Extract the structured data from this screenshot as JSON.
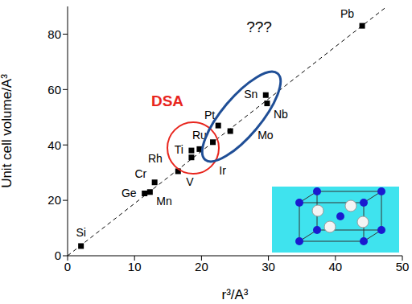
{
  "chart_data": {
    "type": "scatter",
    "x_label": "r³/A³",
    "y_label": "Unit cell volume/A³",
    "xlim": [
      0,
      50
    ],
    "xticks": [
      0,
      10,
      20,
      30,
      40,
      50
    ],
    "ylim": [
      0,
      90
    ],
    "yticks": [
      0,
      20,
      40,
      60,
      80
    ],
    "grid": false,
    "color": "#000000",
    "marker": "square",
    "point_labels": [
      "Si",
      "Ge",
      "Mn",
      "Cr",
      "V",
      "Rh",
      "Ti",
      "Ru",
      "Ir",
      "Pt",
      "Mo",
      "Sn",
      "Nb",
      "Pb"
    ],
    "x": [
      2,
      11.5,
      12.3,
      13,
      16.5,
      18.5,
      18.5,
      19.7,
      21.7,
      22.5,
      24.3,
      29.6,
      29.8,
      44
    ],
    "values": [
      3.5,
      22.5,
      23,
      26.5,
      30.5,
      35.5,
      38,
      38.5,
      41,
      47,
      45,
      58,
      55,
      83
    ],
    "trend_line": {
      "x": [
        0,
        47.7
      ],
      "values": [
        0,
        90
      ],
      "line_style": "dashed",
      "color": "#000000"
    },
    "annotations": [
      {
        "text": "DSA",
        "color": "#e8261e"
      },
      {
        "text": "???",
        "color": "#000000"
      }
    ]
  }
}
